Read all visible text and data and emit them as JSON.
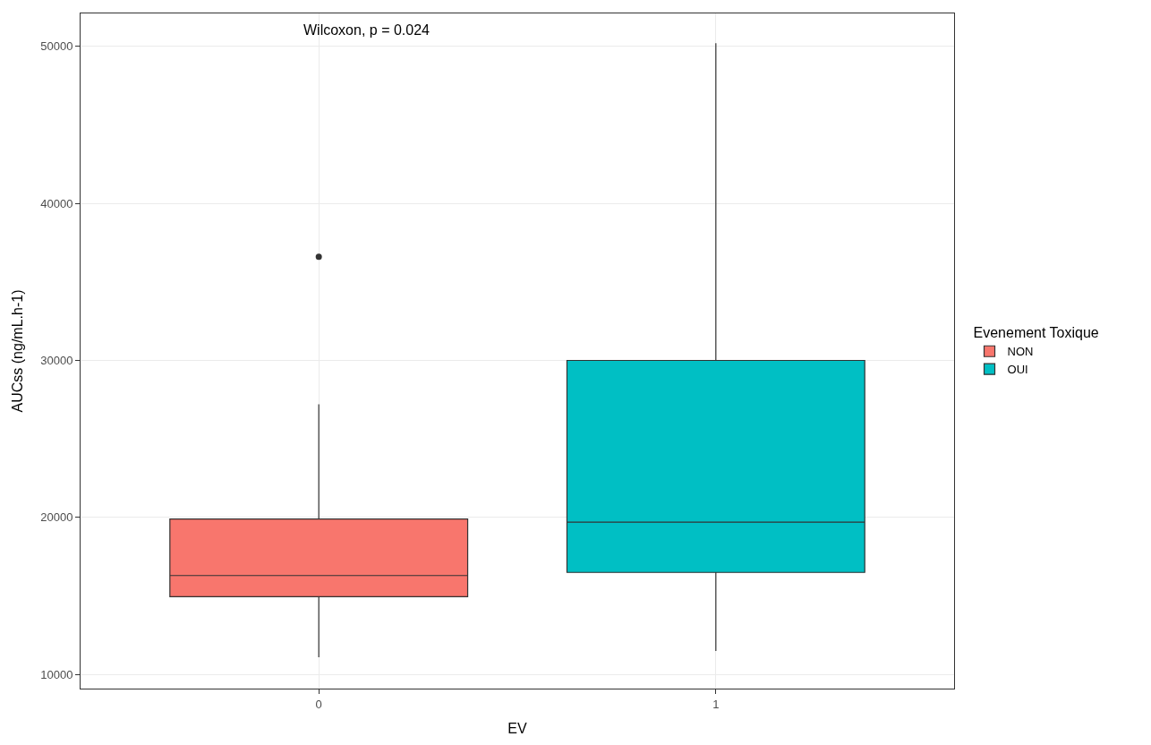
{
  "chart_data": {
    "type": "box",
    "xlabel": "EV",
    "ylabel": "AUCss (ng/mL.h-1)",
    "legend_title": "Evenement Toxique",
    "categories": [
      "0",
      "1"
    ],
    "series": [
      {
        "name": "NON",
        "color": "#f8766d",
        "boxes": [
          {
            "low": 11100,
            "q1": 14950,
            "median": 16300,
            "q3": 19900,
            "high": 27200,
            "outliers": [
              36600
            ]
          },
          null
        ]
      },
      {
        "name": "OUI",
        "color": "#00bfc4",
        "boxes": [
          null,
          {
            "low": 11500,
            "q1": 16500,
            "median": 19700,
            "q3": 30000,
            "high": 50200
          }
        ]
      }
    ],
    "ylim": [
      9100,
      52100
    ],
    "yticks": [
      10000,
      20000,
      30000,
      40000,
      50000
    ],
    "grid": true,
    "legend": "right",
    "annotations": [
      "Wilcoxon, p = 0.024"
    ]
  }
}
